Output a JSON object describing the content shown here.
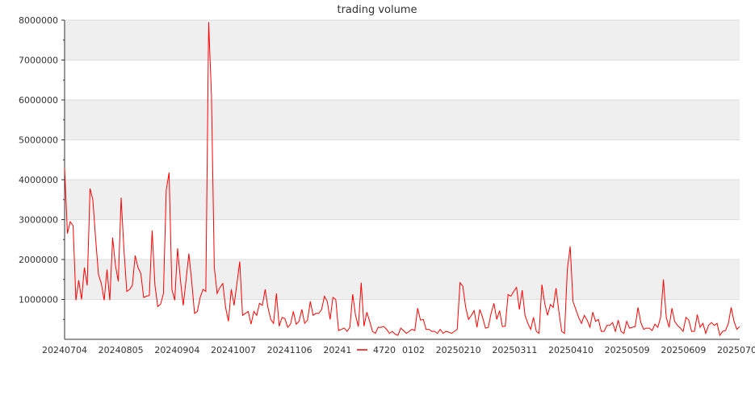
{
  "chart_data": {
    "type": "line",
    "title": "trading volume",
    "ylim": [
      0,
      8000000
    ],
    "y_ticks": [
      1000000,
      2000000,
      3000000,
      4000000,
      5000000,
      6000000,
      7000000,
      8000000
    ],
    "x_tick_labels": [
      "20240704",
      "20240805",
      "20240904",
      "20241007",
      "20241106",
      "20241206",
      "20250102",
      "20250210",
      "20250311",
      "20250410",
      "20250509",
      "20250609",
      "20250704"
    ],
    "grid": true,
    "legend_position": "bottom-center",
    "series": [
      {
        "name": "4720",
        "color": "#ff0000",
        "values": [
          4300000,
          2650000,
          2950000,
          2850000,
          980000,
          1480000,
          1000000,
          1800000,
          1350000,
          3780000,
          3500000,
          2500000,
          1620000,
          1400000,
          980000,
          1750000,
          980000,
          2550000,
          1850000,
          1450000,
          3550000,
          2250000,
          1200000,
          1250000,
          1350000,
          2100000,
          1800000,
          1650000,
          1050000,
          1080000,
          1100000,
          2730000,
          1350000,
          820000,
          880000,
          1150000,
          3750000,
          4180000,
          1250000,
          980000,
          2280000,
          1500000,
          850000,
          1480000,
          2150000,
          1450000,
          650000,
          700000,
          1050000,
          1250000,
          1200000,
          7950000,
          6100000,
          1800000,
          1150000,
          1300000,
          1400000,
          800000,
          450000,
          1250000,
          850000,
          1400000,
          1950000,
          600000,
          650000,
          700000,
          380000,
          700000,
          600000,
          900000,
          850000,
          1250000,
          800000,
          500000,
          400000,
          1150000,
          330000,
          550000,
          520000,
          300000,
          380000,
          700000,
          380000,
          450000,
          750000,
          400000,
          480000,
          950000,
          600000,
          650000,
          650000,
          750000,
          1080000,
          950000,
          500000,
          1050000,
          1000000,
          220000,
          250000,
          280000,
          200000,
          300000,
          1130000,
          600000,
          320000,
          1420000,
          330000,
          680000,
          450000,
          200000,
          150000,
          300000,
          300000,
          320000,
          250000,
          150000,
          200000,
          130000,
          100000,
          280000,
          220000,
          150000,
          200000,
          250000,
          220000,
          780000,
          480000,
          500000,
          250000,
          250000,
          200000,
          200000,
          150000,
          250000,
          150000,
          200000,
          180000,
          150000,
          200000,
          250000,
          1420000,
          1330000,
          800000,
          500000,
          600000,
          720000,
          300000,
          750000,
          550000,
          280000,
          300000,
          650000,
          900000,
          500000,
          720000,
          320000,
          330000,
          1120000,
          1080000,
          1200000,
          1300000,
          750000,
          1230000,
          600000,
          400000,
          250000,
          550000,
          200000,
          150000,
          1370000,
          900000,
          600000,
          870000,
          800000,
          1280000,
          700000,
          200000,
          150000,
          1750000,
          2330000,
          950000,
          750000,
          550000,
          400000,
          600000,
          480000,
          300000,
          680000,
          450000,
          500000,
          200000,
          200000,
          350000,
          350000,
          420000,
          200000,
          480000,
          200000,
          150000,
          450000,
          280000,
          300000,
          320000,
          800000,
          420000,
          250000,
          280000,
          280000,
          220000,
          380000,
          300000,
          550000,
          1500000,
          550000,
          300000,
          780000,
          450000,
          350000,
          280000,
          200000,
          550000,
          480000,
          200000,
          200000,
          620000,
          300000,
          400000,
          150000,
          350000,
          420000,
          350000,
          400000,
          100000,
          200000,
          220000,
          400000,
          800000,
          450000,
          250000,
          320000
        ]
      }
    ]
  }
}
